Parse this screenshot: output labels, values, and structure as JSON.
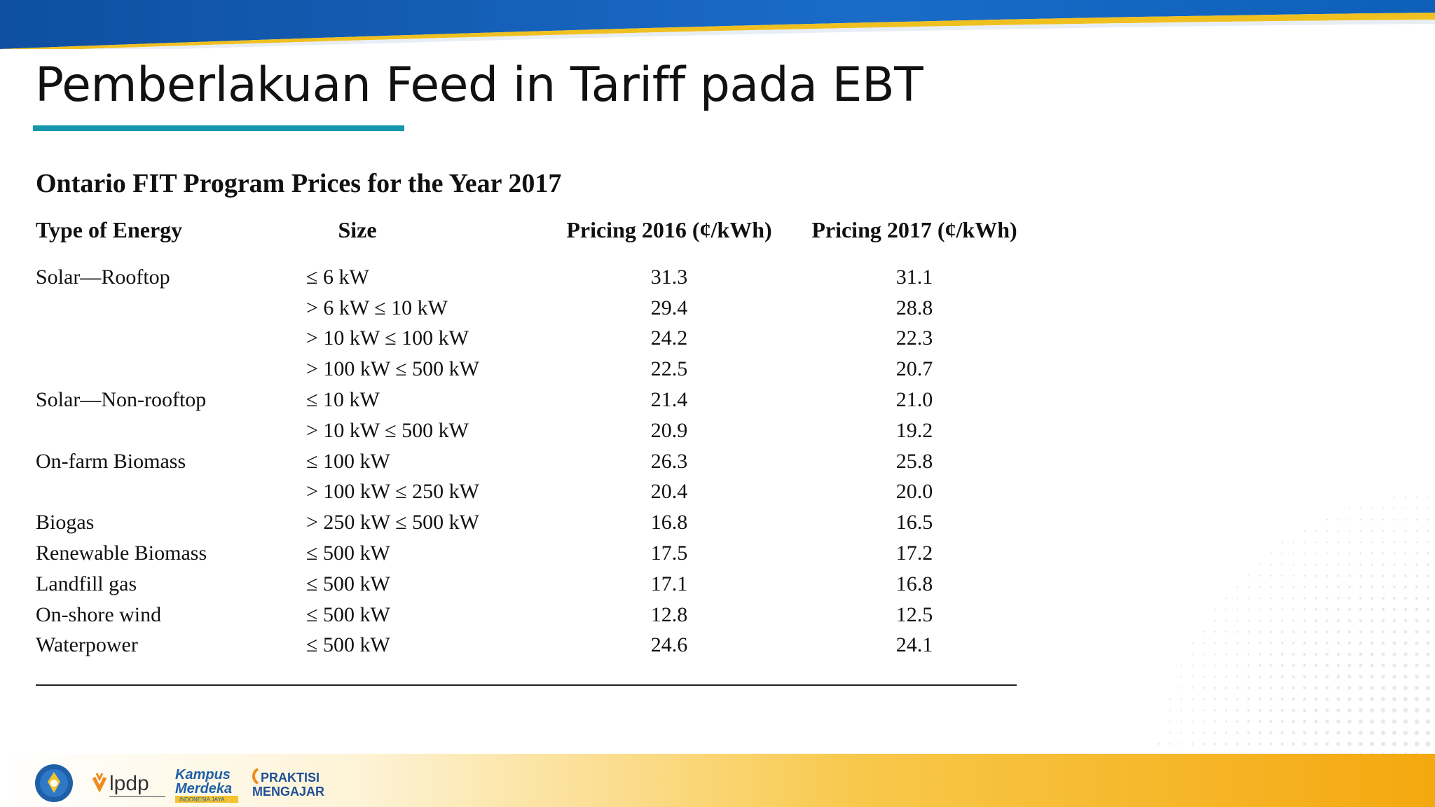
{
  "slide": {
    "title": "Pemberlakuan Feed in Tariff pada EBT",
    "colors": {
      "accent": "#1596ad",
      "top_band": "#0d5fb8",
      "footer_band": "#f6b21a"
    }
  },
  "table": {
    "title": "Ontario FIT Program Prices for the Year 2017",
    "headers": [
      "Type of Energy",
      "Size",
      "Pricing 2016 (¢/kWh)",
      "Pricing 2017 (¢/kWh)"
    ],
    "rows": [
      {
        "type": "Solar—Rooftop",
        "size": "≤ 6 kW",
        "p2016": "31.3",
        "p2017": "31.1"
      },
      {
        "type": "",
        "size": "> 6 kW ≤ 10 kW",
        "p2016": "29.4",
        "p2017": "28.8"
      },
      {
        "type": "",
        "size": "> 10 kW ≤ 100 kW",
        "p2016": "24.2",
        "p2017": "22.3"
      },
      {
        "type": "",
        "size": "> 100 kW ≤ 500 kW",
        "p2016": "22.5",
        "p2017": "20.7"
      },
      {
        "type": "Solar—Non-rooftop",
        "size": "≤ 10 kW",
        "p2016": "21.4",
        "p2017": "21.0"
      },
      {
        "type": "",
        "size": "> 10 kW ≤ 500 kW",
        "p2016": "20.9",
        "p2017": "19.2"
      },
      {
        "type": "On-farm Biomass",
        "size": "≤ 100 kW",
        "p2016": "26.3",
        "p2017": "25.8"
      },
      {
        "type": "",
        "size": "> 100 kW ≤ 250 kW",
        "p2016": "20.4",
        "p2017": "20.0"
      },
      {
        "type": "Biogas",
        "size": "> 250 kW ≤ 500 kW",
        "p2016": "16.8",
        "p2017": "16.5"
      },
      {
        "type": "Renewable Biomass",
        "size": "≤ 500 kW",
        "p2016": "17.5",
        "p2017": "17.2"
      },
      {
        "type": "Landfill gas",
        "size": "≤ 500 kW",
        "p2016": "17.1",
        "p2017": "16.8"
      },
      {
        "type": "On-shore wind",
        "size": "≤ 500 kW",
        "p2016": "12.8",
        "p2017": "12.5"
      },
      {
        "type": "Waterpower",
        "size": "≤ 500 kW",
        "p2016": "24.6",
        "p2017": "24.1"
      }
    ]
  },
  "footer": {
    "logos": [
      {
        "name": "kemendikbud-logo",
        "text": ""
      },
      {
        "name": "lpdp-logo",
        "text": "lpdp"
      },
      {
        "name": "kampus-merdeka-logo",
        "text": "Kampus Merdeka",
        "sub": "INDONESIA JAYA"
      },
      {
        "name": "praktisi-mengajar-logo",
        "text": "PRAKTISI",
        "text2": "MENGAJAR"
      }
    ]
  }
}
